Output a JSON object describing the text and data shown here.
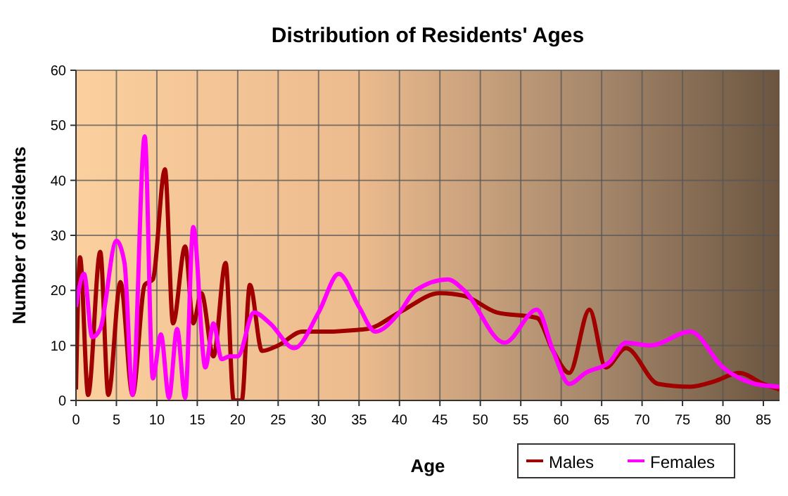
{
  "chart_data": {
    "type": "line",
    "title": "Distribution of Residents' Ages",
    "xlabel": "Age",
    "ylabel": "Number of residents",
    "xlim": [
      0,
      87
    ],
    "xticks": [
      0,
      5,
      10,
      15,
      20,
      25,
      30,
      35,
      40,
      45,
      50,
      55,
      60,
      65,
      70,
      75,
      80,
      85
    ],
    "ylim": [
      0,
      60
    ],
    "yticks": [
      0,
      10,
      20,
      30,
      40,
      50,
      60
    ],
    "grid": true,
    "legend": "bottom right",
    "series": [
      {
        "name": "Males",
        "color": "#a00000",
        "x": [
          0,
          0.5,
          1.5,
          3,
          4,
          5.5,
          7,
          8.5,
          9.5,
          11,
          12,
          13.5,
          14.5,
          15.5,
          17,
          18.5,
          19.5,
          20.5,
          21.5,
          23,
          25,
          28,
          30,
          36,
          40,
          45,
          48,
          52,
          57,
          59,
          61,
          63.5,
          65.5,
          68,
          72,
          76,
          79,
          82,
          85,
          87
        ],
        "values": [
          2,
          26,
          1,
          27,
          1,
          21.5,
          1,
          21,
          22,
          42,
          14,
          28,
          14,
          19.5,
          8,
          25,
          0,
          0,
          21,
          9,
          10,
          12.5,
          12.5,
          13,
          16,
          19.5,
          19,
          16,
          15,
          9,
          5,
          16.5,
          6,
          9.5,
          3,
          2.5,
          3.5,
          5,
          3,
          2
        ]
      },
      {
        "name": "Females",
        "color": "#ff00ff",
        "x": [
          0,
          1,
          2,
          3,
          5,
          6,
          7,
          8.5,
          9.5,
          10.5,
          11.5,
          12.5,
          13.5,
          14.5,
          16,
          17,
          18,
          19,
          20,
          22,
          24,
          27,
          30,
          32.5,
          35,
          37,
          40,
          42,
          46,
          48,
          53,
          57,
          59,
          61,
          63,
          66,
          68,
          71,
          76,
          80,
          84,
          87
        ],
        "values": [
          17,
          23,
          11.5,
          13,
          29,
          25,
          1,
          48,
          4,
          12,
          0.5,
          13,
          0.5,
          31.5,
          6,
          14,
          7.5,
          8,
          8,
          16,
          14,
          9.5,
          16,
          23,
          17,
          12.5,
          16,
          20,
          22,
          20,
          10.5,
          16.5,
          9,
          3,
          5,
          7,
          10.5,
          10,
          12.5,
          6,
          3,
          2.5
        ]
      }
    ]
  }
}
